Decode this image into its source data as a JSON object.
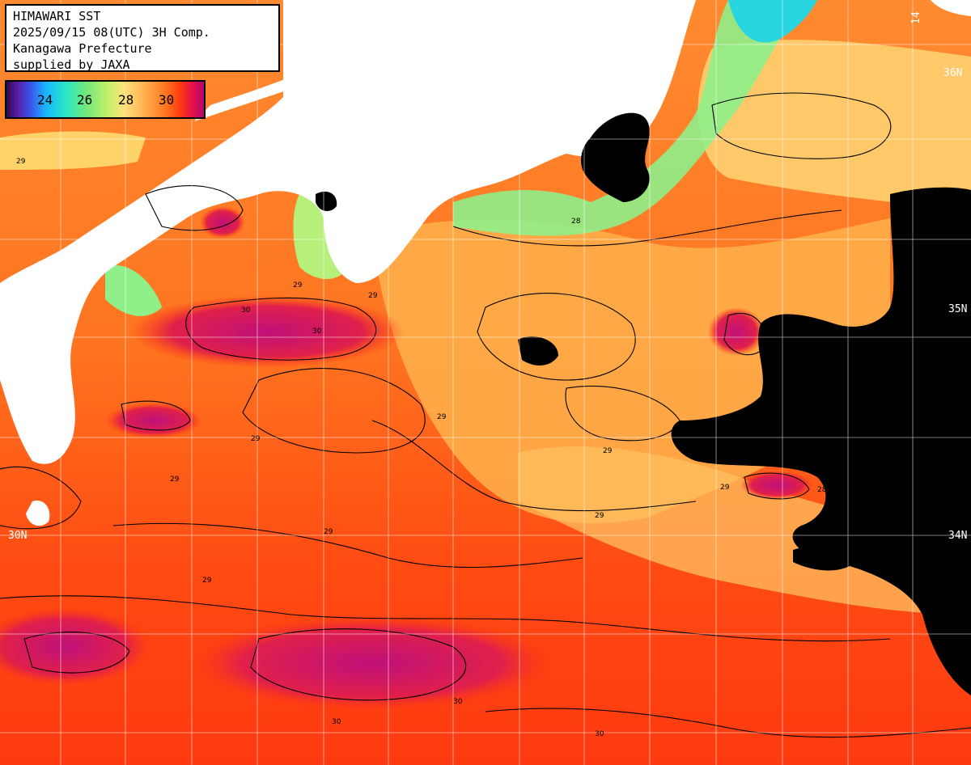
{
  "header": {
    "line1": "HIMAWARI SST",
    "line2": "2025/09/15 08(UTC) 3H Comp.",
    "line3": "Kanagawa Prefecture",
    "line4": "supplied by JAXA"
  },
  "legend": {
    "ticks": [
      "24",
      "26",
      "28",
      "30"
    ],
    "colors": [
      "#2a0a48",
      "#3a52e8",
      "#19b6ff",
      "#6fe87c",
      "#ffe07a",
      "#ff7a20",
      "#ff3a10",
      "#b0086a"
    ]
  },
  "grid_labels": {
    "lat_36": "36N",
    "lat_35": "35N",
    "lat_34": "34N",
    "lat_30": "30N",
    "lon_top": "14"
  },
  "contour_labels": [
    "29",
    "29",
    "30",
    "29",
    "30",
    "28",
    "29",
    "29",
    "29",
    "28",
    "29",
    "29",
    "30",
    "29",
    "29",
    "29",
    "30",
    "30"
  ],
  "colors": {
    "land": "#ffffff",
    "cloud": "#000000",
    "warm": "#ff6a10",
    "hot": "#c0107a",
    "cool": "#ffd36a",
    "cold": "#6fe8a0"
  }
}
